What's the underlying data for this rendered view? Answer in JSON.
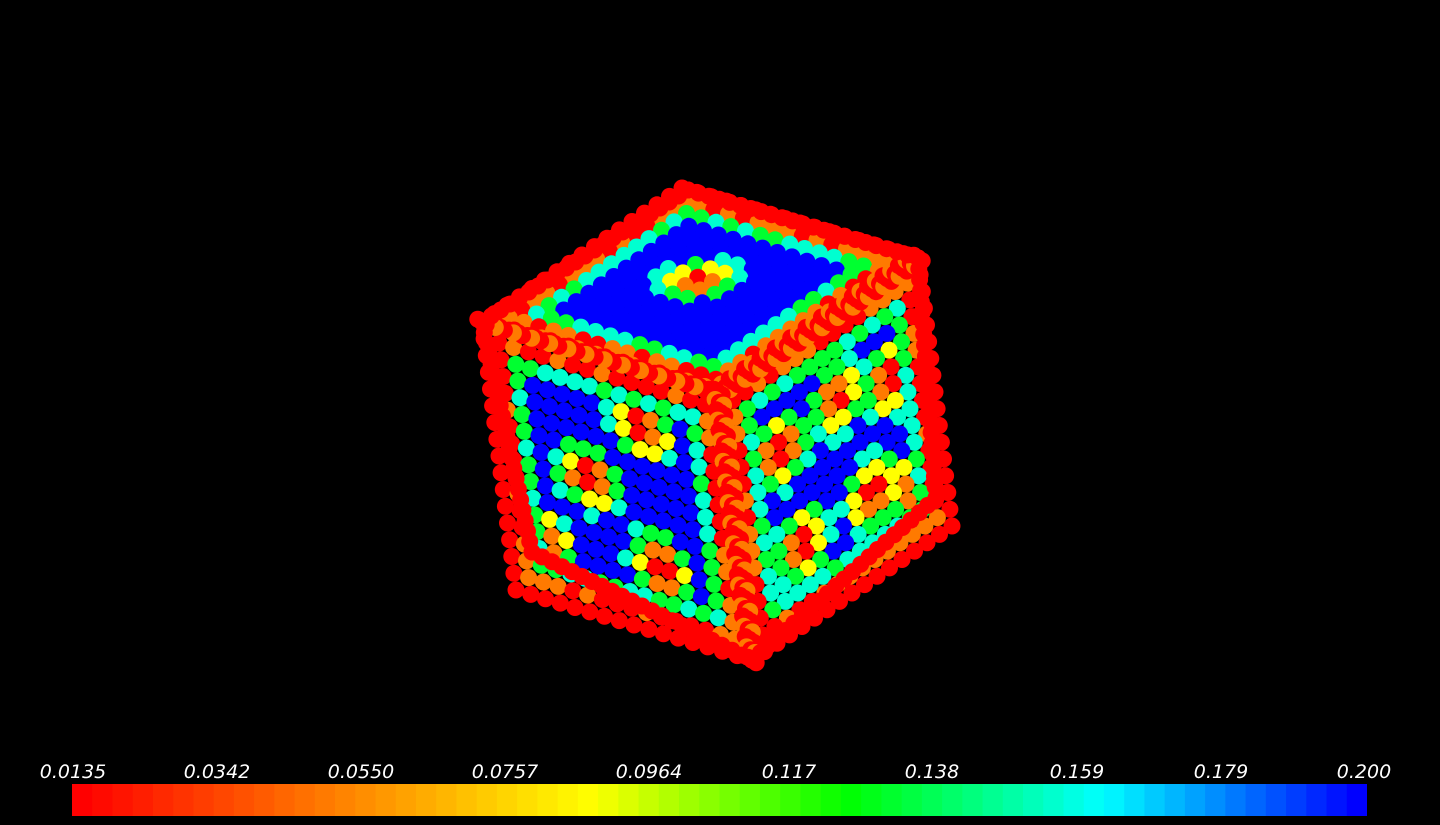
{
  "colorbar": {
    "ticks": [
      "0.0135",
      "0.0342",
      "0.0550",
      "0.0757",
      "0.0964",
      "0.117",
      "0.138",
      "0.159",
      "0.179",
      "0.200"
    ],
    "range": [
      0.0135,
      0.2
    ],
    "colormap": "rainbow",
    "segments": 64,
    "colors": [
      "#ff0000",
      "#ff8000",
      "#ffff00",
      "#00ff00",
      "#00ffff",
      "#0000ff"
    ]
  },
  "scene": {
    "background": "#000000",
    "object": "cube point cloud",
    "colors": {
      "edge": "#ff0000",
      "orange": "#ff7a00",
      "yellow": "#ffff00",
      "green": "#00ff30",
      "cyan": "#00ffd0",
      "blue": "#0000ff"
    }
  }
}
